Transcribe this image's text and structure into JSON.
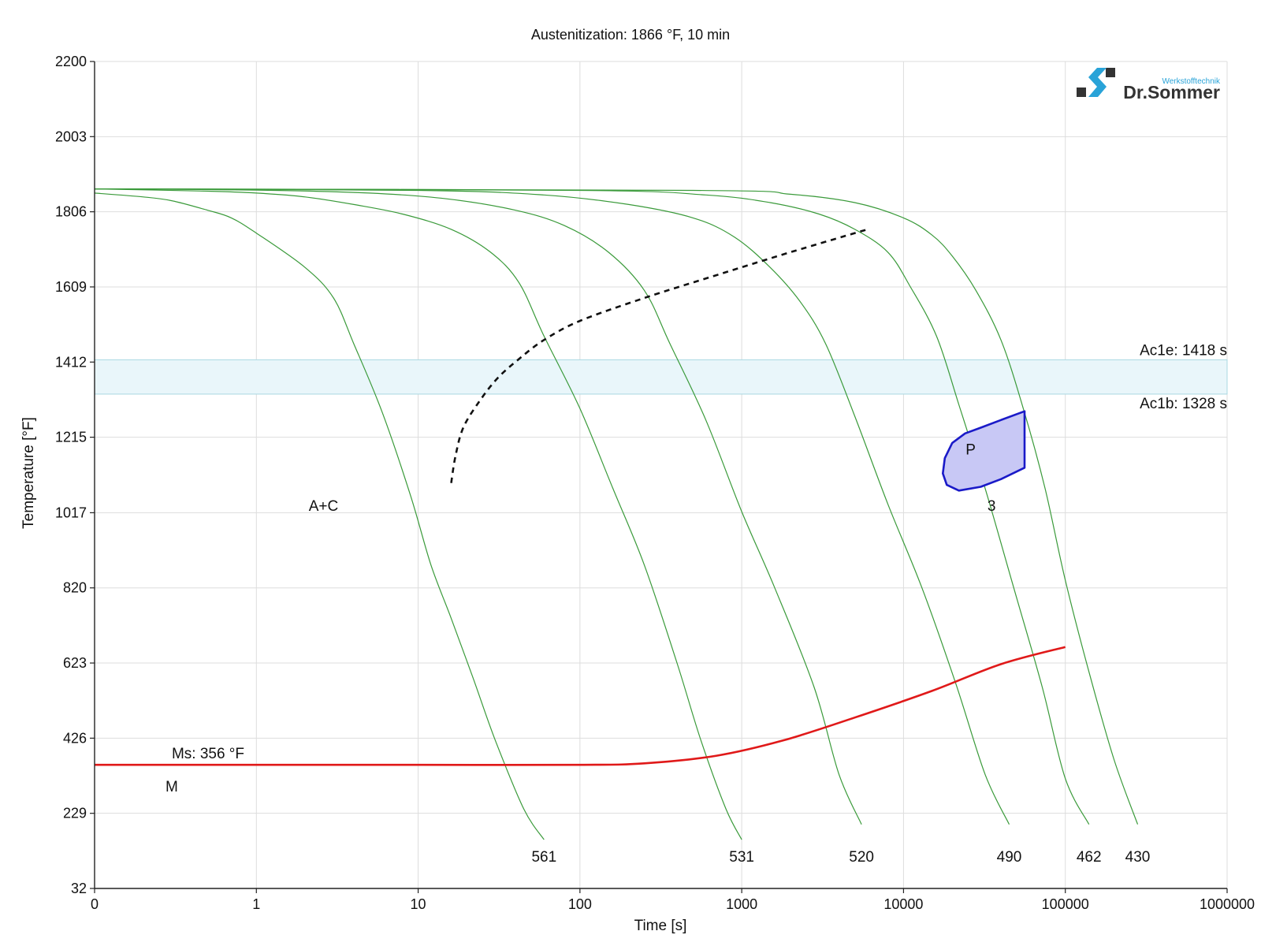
{
  "chart_data": {
    "type": "line",
    "title": "Austenitization: 1866 °F, 10 min",
    "xlabel": "Time [s]",
    "ylabel": "Temperature [°F]",
    "x_scale": "log",
    "x_tick_labels": [
      "0",
      "1",
      "10",
      "100",
      "1000",
      "10000",
      "100000",
      "1000000"
    ],
    "x_tick_values": [
      0.1,
      1,
      10,
      100,
      1000,
      10000,
      100000,
      1000000
    ],
    "xlim": [
      0.1,
      1000000
    ],
    "y_ticks": [
      32,
      229,
      426,
      623,
      820,
      1017,
      1215,
      1412,
      1609,
      1806,
      2003,
      2200
    ],
    "ylim": [
      32,
      2200
    ],
    "logo": {
      "brand": "Dr.Sommer",
      "sub": "Werkstofftechnik"
    },
    "ac_band": {
      "upper": {
        "label": "Ac1e: 1418 s",
        "temp": 1418
      },
      "lower": {
        "label": "Ac1b: 1328 s",
        "temp": 1328
      }
    },
    "ms_line": {
      "label": "Ms: 356 °F",
      "points": [
        [
          0.1,
          356
        ],
        [
          1,
          356
        ],
        [
          10,
          356
        ],
        [
          100,
          356
        ],
        [
          250,
          360
        ],
        [
          700,
          380
        ],
        [
          1800,
          420
        ],
        [
          5000,
          480
        ],
        [
          15000,
          550
        ],
        [
          40000,
          620
        ],
        [
          100000,
          665
        ]
      ]
    },
    "cooling_curves": [
      {
        "label": "561",
        "points": [
          [
            0.1,
            1855
          ],
          [
            0.2,
            1845
          ],
          [
            0.3,
            1835
          ],
          [
            0.5,
            1810
          ],
          [
            0.7,
            1790
          ],
          [
            1,
            1750
          ],
          [
            2,
            1660
          ],
          [
            3,
            1580
          ],
          [
            4,
            1460
          ],
          [
            6,
            1280
          ],
          [
            9,
            1060
          ],
          [
            12,
            880
          ],
          [
            16,
            740
          ],
          [
            22,
            580
          ],
          [
            30,
            420
          ],
          [
            45,
            240
          ],
          [
            60,
            160
          ]
        ]
      },
      {
        "label": "531",
        "points": [
          [
            0.1,
            1866
          ],
          [
            0.5,
            1860
          ],
          [
            1,
            1855
          ],
          [
            2,
            1845
          ],
          [
            4,
            1825
          ],
          [
            8,
            1800
          ],
          [
            16,
            1760
          ],
          [
            28,
            1700
          ],
          [
            42,
            1620
          ],
          [
            60,
            1480
          ],
          [
            100,
            1290
          ],
          [
            160,
            1080
          ],
          [
            250,
            880
          ],
          [
            400,
            620
          ],
          [
            560,
            420
          ],
          [
            800,
            240
          ],
          [
            1000,
            160
          ]
        ]
      },
      {
        "label": "520",
        "points": [
          [
            0.1,
            1866
          ],
          [
            1,
            1863
          ],
          [
            5,
            1855
          ],
          [
            15,
            1840
          ],
          [
            40,
            1810
          ],
          [
            80,
            1770
          ],
          [
            150,
            1700
          ],
          [
            250,
            1600
          ],
          [
            360,
            1460
          ],
          [
            600,
            1260
          ],
          [
            1000,
            1020
          ],
          [
            1600,
            820
          ],
          [
            2800,
            560
          ],
          [
            4000,
            330
          ],
          [
            5500,
            200
          ]
        ]
      },
      {
        "label": "490",
        "points": [
          [
            0.1,
            1866
          ],
          [
            10,
            1862
          ],
          [
            60,
            1850
          ],
          [
            200,
            1825
          ],
          [
            500,
            1790
          ],
          [
            900,
            1740
          ],
          [
            1500,
            1660
          ],
          [
            2300,
            1570
          ],
          [
            3300,
            1460
          ],
          [
            5000,
            1270
          ],
          [
            8000,
            1040
          ],
          [
            13000,
            820
          ],
          [
            21000,
            570
          ],
          [
            32000,
            330
          ],
          [
            45000,
            200
          ]
        ]
      },
      {
        "label": "462",
        "points": [
          [
            0.1,
            1866
          ],
          [
            100,
            1862
          ],
          [
            600,
            1850
          ],
          [
            1500,
            1830
          ],
          [
            3000,
            1800
          ],
          [
            5000,
            1760
          ],
          [
            8000,
            1700
          ],
          [
            11000,
            1610
          ],
          [
            16000,
            1480
          ],
          [
            22000,
            1300
          ],
          [
            32000,
            1080
          ],
          [
            48000,
            820
          ],
          [
            72000,
            560
          ],
          [
            100000,
            320
          ],
          [
            140000,
            200
          ]
        ]
      },
      {
        "label": "430",
        "points": [
          [
            0.1,
            1866
          ],
          [
            500,
            1862
          ],
          [
            2000,
            1852
          ],
          [
            5000,
            1830
          ],
          [
            10000,
            1790
          ],
          [
            15000,
            1745
          ],
          [
            20000,
            1690
          ],
          [
            28000,
            1600
          ],
          [
            40000,
            1470
          ],
          [
            55000,
            1290
          ],
          [
            75000,
            1080
          ],
          [
            100000,
            840
          ],
          [
            140000,
            600
          ],
          [
            200000,
            370
          ],
          [
            280000,
            200
          ]
        ]
      }
    ],
    "transformation_start": {
      "style": "dashed",
      "points": [
        [
          16,
          1095
        ],
        [
          17,
          1165
        ],
        [
          19,
          1240
        ],
        [
          24,
          1310
        ],
        [
          31,
          1370
        ],
        [
          42,
          1420
        ],
        [
          60,
          1470
        ],
        [
          100,
          1520
        ],
        [
          250,
          1580
        ],
        [
          700,
          1640
        ],
        [
          2000,
          1700
        ],
        [
          6000,
          1760
        ]
      ]
    },
    "pearlite_region": {
      "label": "P",
      "hardness_label": "3",
      "points": [
        [
          56000,
          1283
        ],
        [
          40000,
          1260
        ],
        [
          30000,
          1240
        ],
        [
          24000,
          1225
        ],
        [
          20000,
          1200
        ],
        [
          18000,
          1160
        ],
        [
          17500,
          1120
        ],
        [
          18500,
          1090
        ],
        [
          22000,
          1075
        ],
        [
          30000,
          1085
        ],
        [
          40000,
          1105
        ],
        [
          56000,
          1135
        ]
      ]
    },
    "region_labels": [
      {
        "text": "A+C",
        "x": 2.6,
        "y": 1022
      },
      {
        "text": "M",
        "x": 0.3,
        "y": 286
      }
    ]
  }
}
